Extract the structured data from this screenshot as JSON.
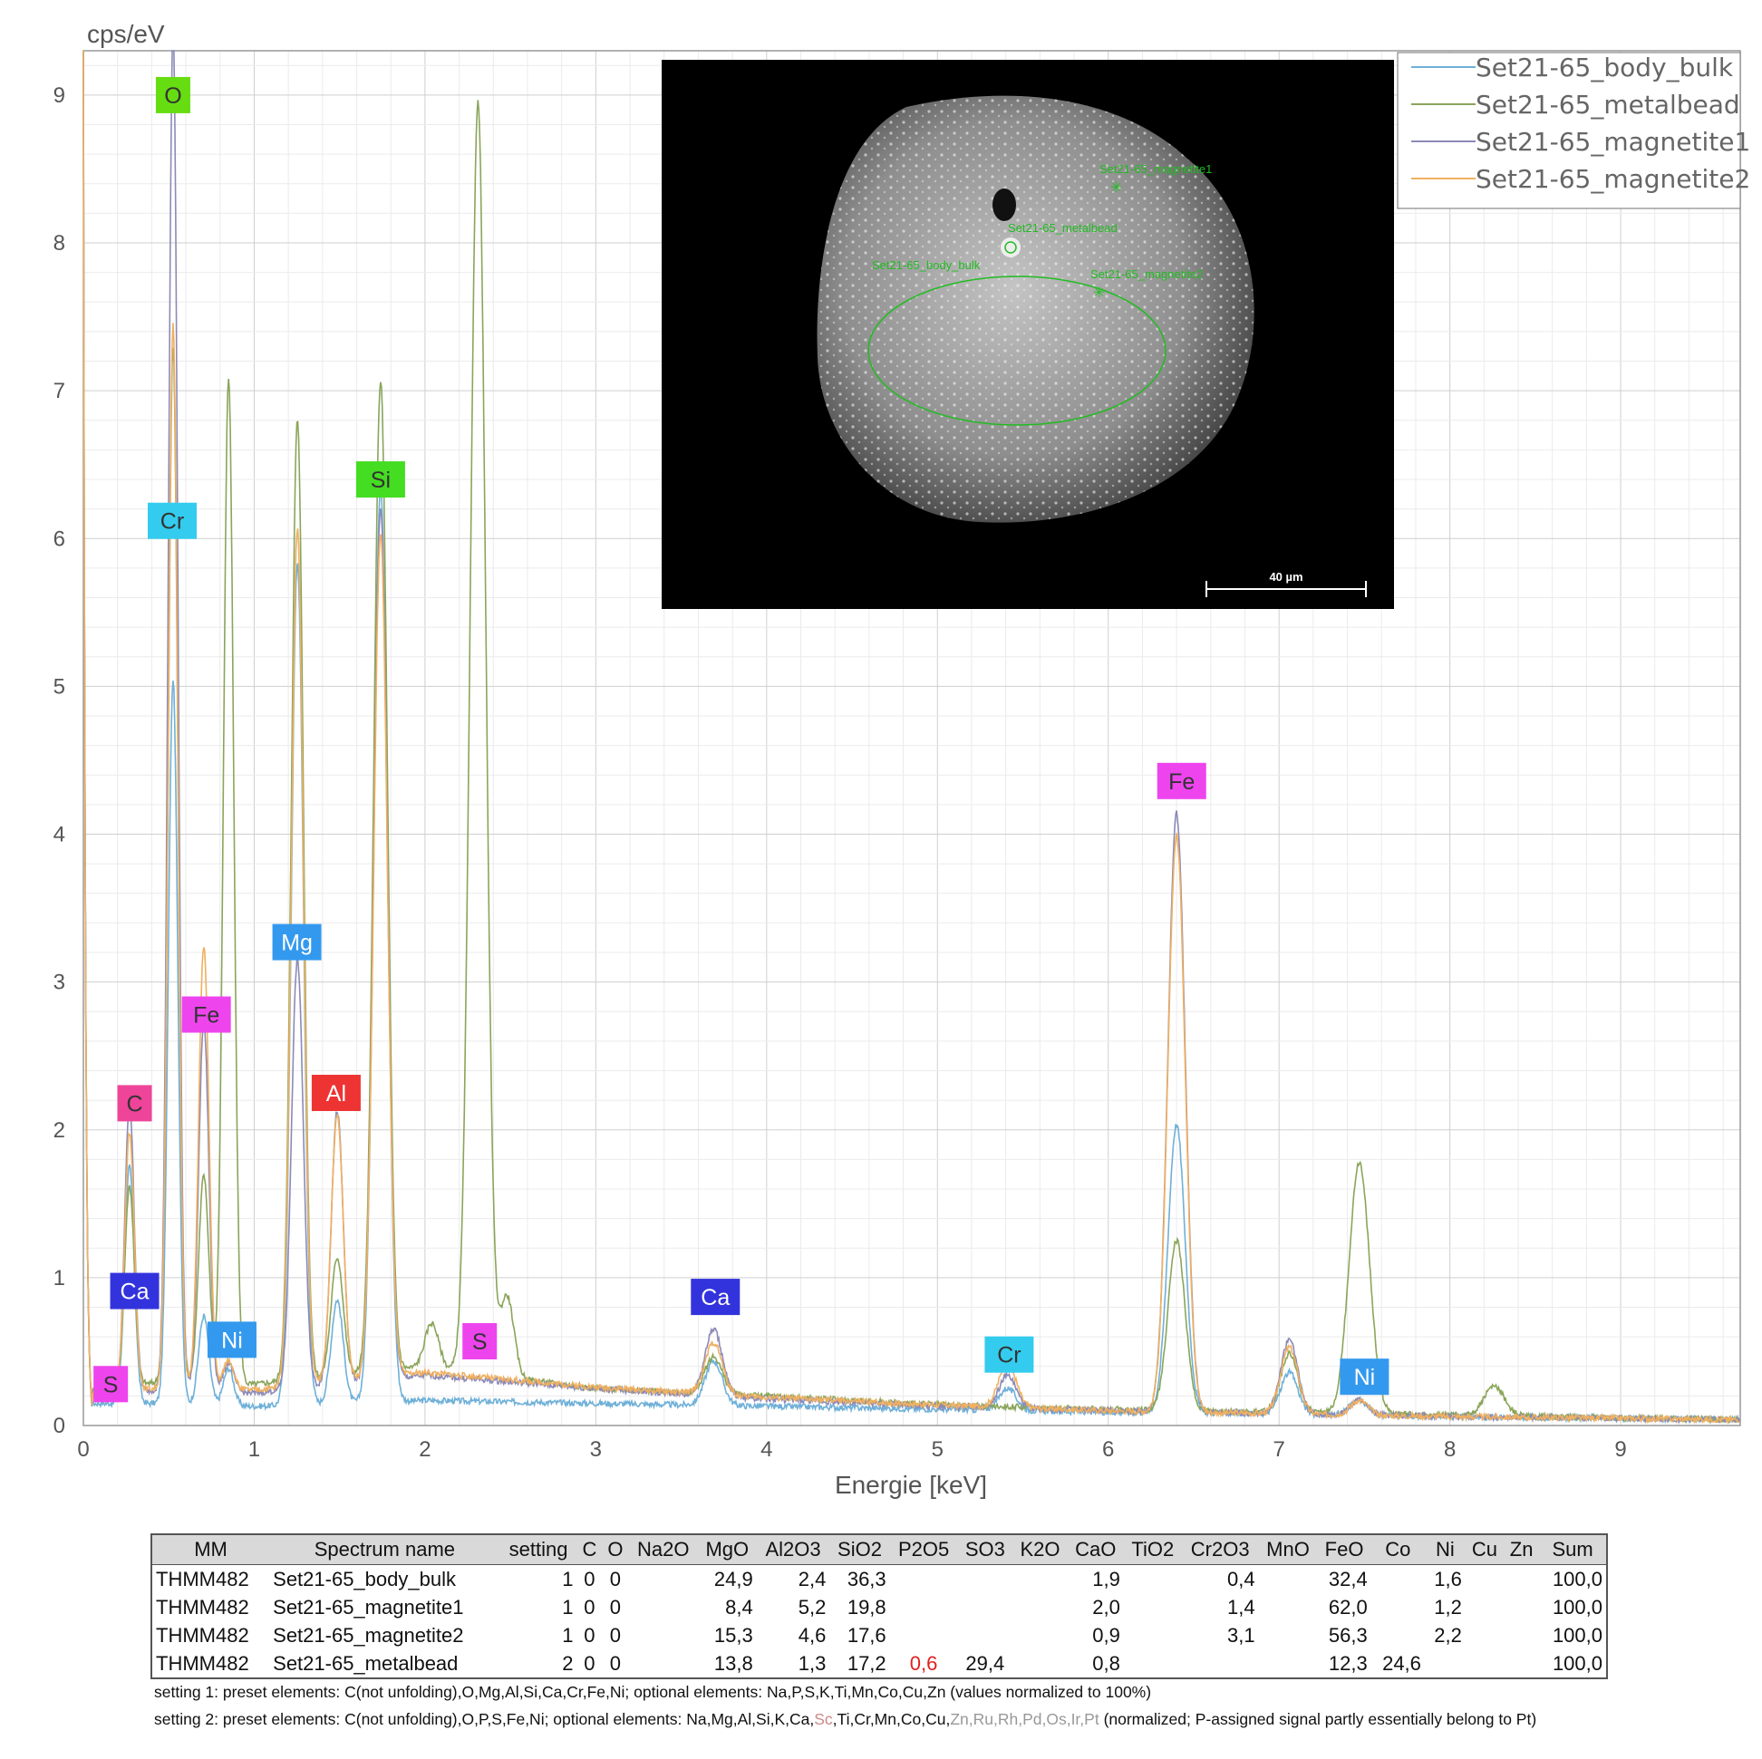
{
  "chart_data": {
    "type": "line",
    "title": "",
    "ylabel": "cps/eV",
    "xlabel": "Energie [keV]",
    "xlim": [
      0,
      9.7
    ],
    "ylim": [
      0,
      9.3
    ],
    "x_ticks": [
      0,
      1,
      2,
      3,
      4,
      5,
      6,
      7,
      8,
      9
    ],
    "y_ticks": [
      0,
      1,
      2,
      3,
      4,
      5,
      6,
      7,
      8,
      9
    ],
    "grid": true,
    "legend_position": "top-right",
    "series": [
      {
        "name": "Set21-65_body_bulk",
        "color": "#6fb0d8",
        "baseline": [
          [
            0.1,
            0.15
          ],
          [
            0.5,
            0.15
          ],
          [
            1.0,
            0.13
          ],
          [
            2,
            0.17
          ],
          [
            3,
            0.15
          ],
          [
            4,
            0.13
          ],
          [
            5,
            0.11
          ],
          [
            6,
            0.09
          ],
          [
            7,
            0.08
          ],
          [
            8,
            0.06
          ],
          [
            9.7,
            0.04
          ]
        ],
        "peaks": [
          [
            0.27,
            1.6,
            0.028
          ],
          [
            0.525,
            4.9,
            0.028
          ],
          [
            0.705,
            0.6,
            0.03
          ],
          [
            0.85,
            0.25,
            0.03
          ],
          [
            1.253,
            5.7,
            0.035
          ],
          [
            1.486,
            0.7,
            0.035
          ],
          [
            1.74,
            6.2,
            0.04
          ],
          [
            3.69,
            0.3,
            0.05
          ],
          [
            5.41,
            0.15,
            0.05
          ],
          [
            6.4,
            1.95,
            0.05
          ],
          [
            7.06,
            0.28,
            0.05
          ],
          [
            7.47,
            0.1,
            0.05
          ]
        ]
      },
      {
        "name": "Set21-65_metalbead",
        "color": "#8aa55a",
        "baseline": [
          [
            0.1,
            0.25
          ],
          [
            0.5,
            0.3
          ],
          [
            1.0,
            0.28
          ],
          [
            2,
            0.4
          ],
          [
            3,
            0.25
          ],
          [
            4,
            0.2
          ],
          [
            5,
            0.14
          ],
          [
            6,
            0.11
          ],
          [
            7,
            0.09
          ],
          [
            8,
            0.07
          ],
          [
            9.7,
            0.04
          ]
        ],
        "peaks": [
          [
            0.27,
            1.35,
            0.028
          ],
          [
            0.525,
            7.0,
            0.028
          ],
          [
            0.705,
            1.4,
            0.03
          ],
          [
            0.85,
            6.8,
            0.03
          ],
          [
            1.253,
            6.5,
            0.035
          ],
          [
            1.486,
            0.8,
            0.035
          ],
          [
            1.74,
            6.7,
            0.04
          ],
          [
            2.04,
            0.3,
            0.04
          ],
          [
            2.31,
            8.6,
            0.045
          ],
          [
            2.48,
            0.55,
            0.04
          ],
          [
            3.69,
            0.25,
            0.05
          ],
          [
            6.4,
            1.15,
            0.05
          ],
          [
            7.06,
            0.4,
            0.05
          ],
          [
            7.47,
            1.7,
            0.06
          ],
          [
            8.26,
            0.2,
            0.06
          ]
        ]
      },
      {
        "name": "Set21-65_magnetite1",
        "color": "#8c8ab8",
        "baseline": [
          [
            0.1,
            0.2
          ],
          [
            0.5,
            0.25
          ],
          [
            1.0,
            0.22
          ],
          [
            2,
            0.34
          ],
          [
            3,
            0.25
          ],
          [
            4,
            0.18
          ],
          [
            5,
            0.13
          ],
          [
            6,
            0.1
          ],
          [
            7,
            0.08
          ],
          [
            8,
            0.06
          ],
          [
            9.7,
            0.04
          ]
        ],
        "peaks": [
          [
            0.27,
            1.95,
            0.028
          ],
          [
            0.525,
            9.2,
            0.028
          ],
          [
            0.705,
            2.5,
            0.03
          ],
          [
            0.85,
            0.2,
            0.03
          ],
          [
            1.253,
            2.9,
            0.035
          ],
          [
            1.486,
            1.85,
            0.035
          ],
          [
            1.74,
            5.9,
            0.04
          ],
          [
            3.69,
            0.45,
            0.05
          ],
          [
            5.41,
            0.22,
            0.05
          ],
          [
            6.4,
            4.05,
            0.05
          ],
          [
            7.06,
            0.5,
            0.05
          ],
          [
            7.47,
            0.1,
            0.05
          ]
        ]
      },
      {
        "name": "Set21-65_magnetite2",
        "color": "#f0b060",
        "baseline": [
          [
            0.1,
            0.22
          ],
          [
            0.5,
            0.26
          ],
          [
            1.0,
            0.24
          ],
          [
            2,
            0.36
          ],
          [
            3,
            0.26
          ],
          [
            4,
            0.19
          ],
          [
            5,
            0.14
          ],
          [
            6,
            0.1
          ],
          [
            7,
            0.08
          ],
          [
            8,
            0.06
          ],
          [
            9.7,
            0.04
          ]
        ],
        "peaks": [
          [
            0.27,
            1.75,
            0.028
          ],
          [
            0.525,
            7.2,
            0.028
          ],
          [
            0.705,
            3.0,
            0.03
          ],
          [
            0.85,
            0.2,
            0.03
          ],
          [
            1.253,
            5.8,
            0.035
          ],
          [
            1.486,
            1.8,
            0.035
          ],
          [
            1.74,
            5.7,
            0.04
          ],
          [
            3.69,
            0.35,
            0.05
          ],
          [
            5.41,
            0.3,
            0.05
          ],
          [
            6.4,
            3.9,
            0.05
          ],
          [
            7.06,
            0.45,
            0.05
          ],
          [
            7.47,
            0.1,
            0.05
          ]
        ]
      }
    ],
    "element_labels": [
      {
        "text": "O",
        "x": 0.525,
        "y": 9.0,
        "color": "#66dd11"
      },
      {
        "text": "Cr",
        "x": 0.52,
        "y": 6.12,
        "color": "#33ccee"
      },
      {
        "text": "Si",
        "x": 1.74,
        "y": 6.4,
        "color": "#44dd22"
      },
      {
        "text": "Mg",
        "x": 1.25,
        "y": 3.27,
        "color": "#3399ee"
      },
      {
        "text": "Fe",
        "x": 0.72,
        "y": 2.78,
        "color": "#ee44ee"
      },
      {
        "text": "C",
        "x": 0.3,
        "y": 2.18,
        "color": "#ee4499"
      },
      {
        "text": "Al",
        "x": 1.48,
        "y": 2.25,
        "color": "#ee3333"
      },
      {
        "text": "Ca",
        "x": 0.3,
        "y": 0.91,
        "color": "#3333dd"
      },
      {
        "text": "Ni",
        "x": 0.87,
        "y": 0.58,
        "color": "#3399ee"
      },
      {
        "text": "S",
        "x": 0.16,
        "y": 0.28,
        "color": "#ee44ee"
      },
      {
        "text": "S",
        "x": 2.32,
        "y": 0.57,
        "color": "#ee44ee"
      },
      {
        "text": "Ca",
        "x": 3.7,
        "y": 0.87,
        "color": "#3333dd"
      },
      {
        "text": "Cr",
        "x": 5.42,
        "y": 0.48,
        "color": "#33ccee"
      },
      {
        "text": "Fe",
        "x": 6.43,
        "y": 4.36,
        "color": "#ee44ee"
      },
      {
        "text": "Ni",
        "x": 7.5,
        "y": 0.33,
        "color": "#3399ee"
      }
    ]
  },
  "sem_image": {
    "scale_bar": "40 µm",
    "labels": [
      "Set21-65_magnetite1",
      "Set21-65_metalbead",
      "Set21-65_body_bulk",
      "Set21-65_magnetite2"
    ]
  },
  "table": {
    "headers": [
      "MM",
      "Spectrum name",
      "setting",
      "C",
      "O",
      "Na2O",
      "MgO",
      "Al2O3",
      "SiO2",
      "P2O5",
      "SO3",
      "K2O",
      "CaO",
      "TiO2",
      "Cr2O3",
      "MnO",
      "FeO",
      "Co",
      "Ni",
      "Cu",
      "Zn",
      "Sum"
    ],
    "rows": [
      [
        "THMM482",
        "Set21-65_body_bulk",
        "1",
        "0",
        "0",
        "",
        "24,9",
        "2,4",
        "36,3",
        "",
        "",
        "",
        "1,9",
        "",
        "0,4",
        "",
        "32,4",
        "",
        "1,6",
        "",
        "",
        "100,0"
      ],
      [
        "THMM482",
        "Set21-65_magnetite1",
        "1",
        "0",
        "0",
        "",
        "8,4",
        "5,2",
        "19,8",
        "",
        "",
        "",
        "2,0",
        "",
        "1,4",
        "",
        "62,0",
        "",
        "1,2",
        "",
        "",
        "100,0"
      ],
      [
        "THMM482",
        "Set21-65_magnetite2",
        "1",
        "0",
        "0",
        "",
        "15,3",
        "4,6",
        "17,6",
        "",
        "",
        "",
        "0,9",
        "",
        "3,1",
        "",
        "56,3",
        "",
        "2,2",
        "",
        "",
        "100,0"
      ],
      [
        "THMM482",
        "Set21-65_metalbead",
        "2",
        "0",
        "0",
        "",
        "13,8",
        "1,3",
        "17,2",
        "0,6",
        "29,4",
        "",
        "0,8",
        "",
        "",
        "",
        "12,3",
        "24,6",
        "",
        "",
        "",
        "100,0"
      ]
    ]
  },
  "notes": {
    "note1": "setting 1: preset elements: C(not unfolding),O,Mg,Al,Si,Ca,Cr,Fe,Ni; optional elements: Na,P,S,K,Ti,Mn,Co,Cu,Zn (values normalized to 100%)",
    "note2_a": "setting 2: preset elements: C(not unfolding),O,P,S,Fe,Ni; optional elements: Na,Mg,Al,Si,K,Ca,",
    "note2_sc": "Sc",
    "note2_b": ",Ti,Cr,Mn,Co,Cu,",
    "note2_grey": "Zn,Ru,Rh,Pd,Os,Ir,Pt",
    "note2_c": " (normalized; P-assigned signal partly essentially belong to Pt)"
  }
}
